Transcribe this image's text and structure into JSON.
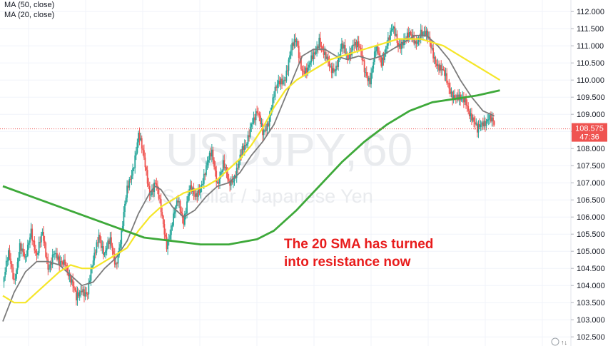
{
  "legend": {
    "ma50": "MA (50, close)",
    "ma20": "MA (20, close)"
  },
  "watermark": {
    "symbol": "USDJPY",
    "interval": "60",
    "separator": ",",
    "description": "U.S. Dollar / Japanese Yen"
  },
  "annotation": {
    "line1": "The 20 SMA has turned",
    "line2": "into resistance now"
  },
  "price_tag": {
    "price": "108.575",
    "countdown": "47:36"
  },
  "colors": {
    "up": "#26a69a",
    "down": "#ef5350",
    "ma20": "#7b7b7b",
    "ma50": "#f5e629",
    "ma200": "#3ea93a",
    "annotation": "#e81c1c",
    "price_tag": "#ef5350"
  },
  "chart_data": {
    "type": "line",
    "title": "",
    "y_axis": {
      "ticks": [
        "112.000",
        "111.500",
        "111.000",
        "110.500",
        "110.000",
        "109.500",
        "109.000",
        "108.500",
        "108.000",
        "107.500",
        "107.000",
        "106.500",
        "106.000",
        "105.500",
        "105.000",
        "104.500",
        "104.000",
        "103.500",
        "103.000",
        "102.500"
      ],
      "range": [
        102.4,
        112.15
      ]
    },
    "x_range": [
      0,
      100
    ],
    "last_price": 108.575,
    "price_series": [
      [
        0,
        104.1
      ],
      [
        1,
        104.8
      ],
      [
        2,
        104.2
      ],
      [
        3,
        105.2
      ],
      [
        4,
        104.6
      ],
      [
        5,
        105.7
      ],
      [
        6,
        104.9
      ],
      [
        7,
        105.4
      ],
      [
        8,
        104.6
      ],
      [
        9,
        105.0
      ],
      [
        10,
        104.5
      ],
      [
        11,
        104.8
      ],
      [
        12,
        104.2
      ],
      [
        13,
        103.5
      ],
      [
        14,
        104.0
      ],
      [
        15,
        103.8
      ],
      [
        16,
        104.6
      ],
      [
        17,
        105.6
      ],
      [
        18,
        104.9
      ],
      [
        19,
        105.2
      ],
      [
        20,
        104.7
      ],
      [
        21,
        105.5
      ],
      [
        22,
        106.7
      ],
      [
        23,
        107.5
      ],
      [
        24,
        108.4
      ],
      [
        25,
        107.6
      ],
      [
        26,
        106.8
      ],
      [
        27,
        107.0
      ],
      [
        28,
        106.1
      ],
      [
        29,
        105.3
      ],
      [
        30,
        105.8
      ],
      [
        31,
        106.4
      ],
      [
        32,
        106.0
      ],
      [
        33,
        106.8
      ],
      [
        34,
        106.5
      ],
      [
        35,
        107.0
      ],
      [
        36,
        107.4
      ],
      [
        37,
        107.8
      ],
      [
        38,
        107.1
      ],
      [
        39,
        107.5
      ],
      [
        40,
        106.9
      ],
      [
        41,
        107.3
      ],
      [
        42,
        107.7
      ],
      [
        43,
        108.0
      ],
      [
        44,
        108.9
      ],
      [
        45,
        109.0
      ],
      [
        46,
        108.4
      ],
      [
        47,
        108.9
      ],
      [
        48,
        109.5
      ],
      [
        49,
        109.9
      ],
      [
        50,
        110.2
      ],
      [
        51,
        110.8
      ],
      [
        52,
        111.1
      ],
      [
        53,
        110.4
      ],
      [
        54,
        110.2
      ],
      [
        55,
        110.7
      ],
      [
        56,
        111.3
      ],
      [
        57,
        110.6
      ],
      [
        58,
        110.3
      ],
      [
        59,
        110.5
      ],
      [
        60,
        110.9
      ],
      [
        61,
        110.6
      ],
      [
        62,
        111.2
      ],
      [
        63,
        110.9
      ],
      [
        64,
        110.3
      ],
      [
        65,
        110.1
      ],
      [
        66,
        110.8
      ],
      [
        67,
        110.5
      ],
      [
        68,
        111.2
      ],
      [
        69,
        111.4
      ],
      [
        70,
        111.0
      ],
      [
        71,
        111.3
      ],
      [
        72,
        111.2
      ],
      [
        73,
        111.1
      ],
      [
        74,
        111.5
      ],
      [
        75,
        111.2
      ],
      [
        76,
        110.9
      ],
      [
        77,
        110.5
      ],
      [
        78,
        110.1
      ],
      [
        79,
        109.8
      ],
      [
        80,
        109.6
      ],
      [
        81,
        109.3
      ],
      [
        82,
        109.4
      ],
      [
        83,
        109.0
      ],
      [
        84,
        108.4
      ],
      [
        85,
        108.8
      ],
      [
        86,
        109.0
      ],
      [
        87,
        108.575
      ]
    ],
    "series": [
      {
        "name": "MA (20, close)",
        "color": "#7b7b7b",
        "points": [
          [
            0,
            102.95
          ],
          [
            2,
            103.8
          ],
          [
            4,
            104.4
          ],
          [
            6,
            104.7
          ],
          [
            8,
            104.7
          ],
          [
            10,
            104.6
          ],
          [
            12,
            104.3
          ],
          [
            14,
            104.0
          ],
          [
            16,
            104.1
          ],
          [
            18,
            104.5
          ],
          [
            20,
            104.8
          ],
          [
            22,
            105.3
          ],
          [
            24,
            106.1
          ],
          [
            26,
            106.7
          ],
          [
            27,
            106.9
          ],
          [
            28,
            106.8
          ],
          [
            30,
            106.3
          ],
          [
            32,
            106.0
          ],
          [
            34,
            106.2
          ],
          [
            36,
            106.6
          ],
          [
            38,
            106.9
          ],
          [
            40,
            107.0
          ],
          [
            42,
            107.3
          ],
          [
            44,
            107.8
          ],
          [
            46,
            108.2
          ],
          [
            48,
            108.7
          ],
          [
            50,
            109.5
          ],
          [
            52,
            110.3
          ],
          [
            53,
            110.7
          ],
          [
            55,
            110.9
          ],
          [
            57,
            110.9
          ],
          [
            59,
            110.7
          ],
          [
            61,
            110.6
          ],
          [
            63,
            110.7
          ],
          [
            65,
            110.6
          ],
          [
            67,
            110.7
          ],
          [
            69,
            110.9
          ],
          [
            71,
            111.1
          ],
          [
            73,
            111.3
          ],
          [
            75,
            111.3
          ],
          [
            77,
            111.0
          ],
          [
            79,
            110.6
          ],
          [
            81,
            110.0
          ],
          [
            83,
            109.5
          ],
          [
            85,
            109.1
          ],
          [
            87,
            108.95
          ]
        ]
      },
      {
        "name": "MA (50, close)",
        "color": "#f5e629",
        "points": [
          [
            0,
            103.7
          ],
          [
            2,
            103.5
          ],
          [
            4,
            103.5
          ],
          [
            6,
            103.8
          ],
          [
            8,
            104.1
          ],
          [
            10,
            104.4
          ],
          [
            12,
            104.6
          ],
          [
            14,
            104.5
          ],
          [
            16,
            104.5
          ],
          [
            18,
            104.7
          ],
          [
            20,
            104.9
          ],
          [
            22,
            105.1
          ],
          [
            24,
            105.6
          ],
          [
            26,
            106.0
          ],
          [
            28,
            106.3
          ],
          [
            30,
            106.5
          ],
          [
            32,
            106.7
          ],
          [
            34,
            106.8
          ],
          [
            36,
            106.9
          ],
          [
            38,
            107.1
          ],
          [
            40,
            107.4
          ],
          [
            42,
            107.7
          ],
          [
            44,
            108.1
          ],
          [
            46,
            108.6
          ],
          [
            48,
            109.2
          ],
          [
            50,
            109.7
          ],
          [
            52,
            110.0
          ],
          [
            54,
            110.2
          ],
          [
            56,
            110.4
          ],
          [
            58,
            110.6
          ],
          [
            60,
            110.7
          ],
          [
            62,
            110.8
          ],
          [
            64,
            110.9
          ],
          [
            66,
            111.0
          ],
          [
            68,
            111.1
          ],
          [
            70,
            111.2
          ],
          [
            72,
            111.2
          ],
          [
            74,
            111.2
          ],
          [
            76,
            111.1
          ],
          [
            78,
            111.0
          ],
          [
            80,
            110.8
          ],
          [
            82,
            110.6
          ],
          [
            84,
            110.4
          ],
          [
            86,
            110.2
          ],
          [
            88,
            110.0
          ]
        ]
      },
      {
        "name": "",
        "color": "#3ea93a",
        "points": [
          [
            0,
            106.9
          ],
          [
            5,
            106.6
          ],
          [
            10,
            106.3
          ],
          [
            15,
            106.0
          ],
          [
            20,
            105.7
          ],
          [
            25,
            105.4
          ],
          [
            30,
            105.3
          ],
          [
            35,
            105.2
          ],
          [
            40,
            105.2
          ],
          [
            45,
            105.35
          ],
          [
            48,
            105.6
          ],
          [
            52,
            106.2
          ],
          [
            56,
            106.9
          ],
          [
            60,
            107.6
          ],
          [
            64,
            108.2
          ],
          [
            68,
            108.7
          ],
          [
            72,
            109.1
          ],
          [
            76,
            109.35
          ],
          [
            80,
            109.45
          ],
          [
            84,
            109.55
          ],
          [
            88,
            109.7
          ]
        ]
      }
    ]
  }
}
